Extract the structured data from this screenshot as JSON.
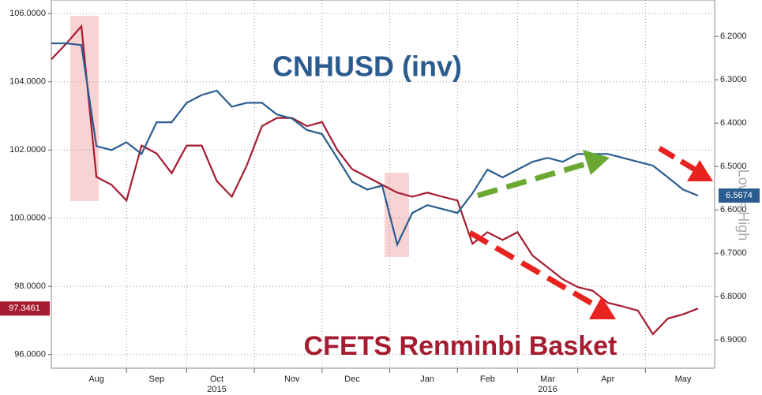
{
  "chart_data": {
    "type": "line",
    "annotations": {
      "blue_title": "CNHUSD (inv)",
      "red_title": "CFETS Renminbi Basket",
      "right_axis_note": "Low = High"
    },
    "last_labels": {
      "left": "97.3461",
      "right": "6.5674"
    },
    "categories": [
      null,
      null,
      null,
      "Aug",
      null,
      null,
      null,
      "Sep",
      null,
      null,
      null,
      "Oct",
      null,
      null,
      null,
      null,
      "Nov",
      null,
      null,
      null,
      "Dec",
      null,
      null,
      null,
      null,
      "Jan",
      null,
      null,
      null,
      "Feb",
      null,
      null,
      null,
      "Mar",
      null,
      null,
      null,
      "Apr",
      null,
      null,
      null,
      null,
      "May",
      null
    ],
    "years": [
      null,
      null,
      null,
      null,
      null,
      null,
      null,
      null,
      null,
      null,
      null,
      "2015",
      null,
      null,
      null,
      null,
      null,
      null,
      null,
      null,
      null,
      null,
      null,
      null,
      null,
      null,
      null,
      null,
      null,
      null,
      null,
      null,
      null,
      "2016",
      null,
      null,
      null,
      null,
      null,
      null,
      null,
      null,
      null,
      null
    ],
    "series": [
      {
        "name": "CFETS Renminbi Basket",
        "color": "#a51c30",
        "axis": "y",
        "values": [
          104.66,
          105.12,
          105.63,
          101.21,
          100.98,
          100.52,
          102.13,
          101.9,
          101.32,
          102.13,
          102.13,
          101.09,
          100.63,
          101.55,
          102.7,
          102.94,
          102.94,
          102.7,
          102.82,
          102.01,
          101.44,
          101.21,
          100.98,
          100.75,
          100.63,
          100.75,
          100.63,
          100.52,
          99.25,
          99.59,
          99.36,
          99.59,
          98.9,
          98.56,
          98.21,
          97.98,
          97.87,
          97.52,
          97.41,
          97.29,
          96.6,
          97.06,
          97.18,
          97.35
        ]
      },
      {
        "name": "CNHUSD (inv)",
        "color": "#2a5c8f",
        "axis": "y2",
        "values": [
          6.216,
          6.216,
          6.22,
          6.453,
          6.462,
          6.444,
          6.471,
          6.398,
          6.398,
          6.353,
          6.335,
          6.325,
          6.362,
          6.353,
          6.353,
          6.38,
          6.389,
          6.416,
          6.425,
          6.48,
          6.535,
          6.553,
          6.544,
          6.68,
          6.607,
          6.589,
          6.598,
          6.607,
          6.562,
          6.507,
          6.525,
          6.507,
          6.489,
          6.48,
          6.489,
          6.471,
          6.471,
          6.471,
          6.48,
          6.489,
          6.498,
          6.525,
          6.553,
          6.567
        ]
      }
    ],
    "ylim": [
      95.6,
      106.4
    ],
    "yticks": [
      {
        "value": 96,
        "label": "96.0000"
      },
      {
        "value": 98,
        "label": "98.0000"
      },
      {
        "value": 100,
        "label": "100.0000"
      },
      {
        "value": 102,
        "label": "102.0000"
      },
      {
        "value": 104,
        "label": "104.0000"
      },
      {
        "value": 106,
        "label": "106.0000"
      }
    ],
    "y2lim": [
      6.116,
      6.965
    ],
    "y2_inverted": true,
    "y2ticks": [
      {
        "value": 6.2,
        "label": "6.2000"
      },
      {
        "value": 6.3,
        "label": "6.3000"
      },
      {
        "value": 6.4,
        "label": "6.4000"
      },
      {
        "value": 6.5,
        "label": "6.5000"
      },
      {
        "value": 6.6,
        "label": "6.6000"
      },
      {
        "value": 6.7,
        "label": "6.7000"
      },
      {
        "value": 6.8,
        "label": "6.8000"
      },
      {
        "value": 6.9,
        "label": "6.9000"
      }
    ],
    "grid": true
  }
}
